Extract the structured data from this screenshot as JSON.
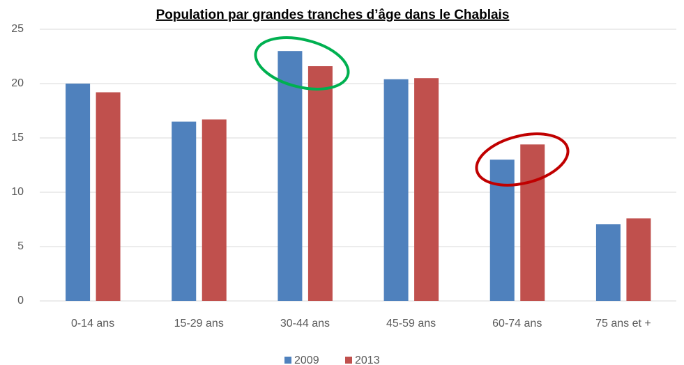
{
  "chart_data": {
    "type": "bar",
    "title": "Population par grandes tranches d’âge dans le Chablais",
    "categories": [
      "0-14 ans",
      "15-29 ans",
      "30-44 ans",
      "45-59 ans",
      "60-74 ans",
      "75 ans et +"
    ],
    "series": [
      {
        "name": "2009",
        "color": "#4f81bd",
        "values": [
          20.0,
          16.5,
          23.0,
          20.4,
          13.0,
          7.05
        ]
      },
      {
        "name": "2013",
        "color": "#c0504d",
        "values": [
          19.2,
          16.7,
          21.6,
          20.5,
          14.4,
          7.6
        ]
      }
    ],
    "ylim": [
      0,
      25
    ],
    "yticks": [
      0,
      5,
      10,
      15,
      20,
      25
    ],
    "grid": true,
    "legend": "bottom"
  }
}
